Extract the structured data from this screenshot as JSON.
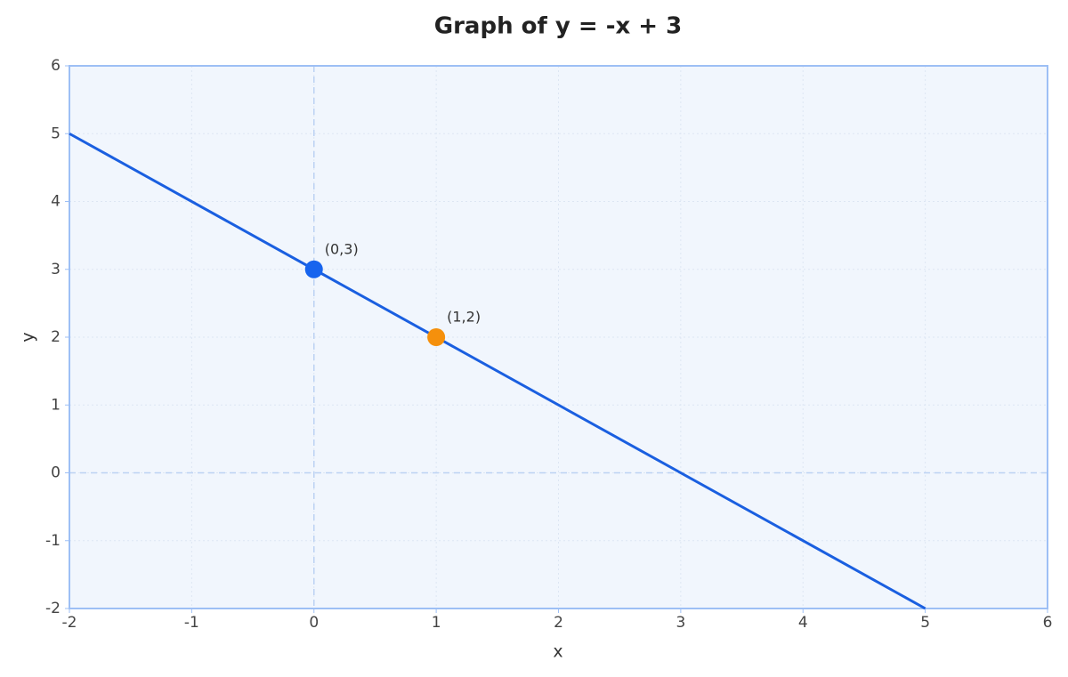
{
  "chart_data": {
    "type": "line",
    "title": "Graph of y = -x + 3",
    "xlabel": "x",
    "ylabel": "y",
    "x": [
      -2,
      5
    ],
    "series": [
      {
        "name": "y = -x + 3",
        "color": "#1a5fe0",
        "values": [
          5,
          -2
        ]
      }
    ],
    "points": [
      {
        "x": 0,
        "y": 3,
        "label": "(0,3)",
        "color": "#1764ee"
      },
      {
        "x": 1,
        "y": 2,
        "label": "(1,2)",
        "color": "#f5900c"
      }
    ],
    "xlim": [
      -2,
      6
    ],
    "ylim": [
      -2,
      6
    ],
    "xticks": [
      -2,
      -1,
      0,
      1,
      2,
      3,
      4,
      5,
      6
    ],
    "yticks": [
      -2,
      -1,
      0,
      1,
      2,
      3,
      4,
      5,
      6
    ],
    "grid": true,
    "zero_lines": true
  }
}
